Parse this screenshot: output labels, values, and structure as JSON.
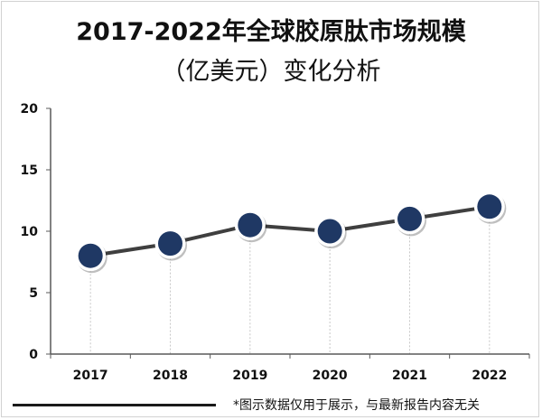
{
  "header": {
    "title_line1": "2017-2022年全球胶原肽市场规模",
    "title_line2": "（亿美元）变化分析"
  },
  "footer": {
    "note": "*图示数据仅用于展示，与最新报告内容无关"
  },
  "colors": {
    "marker_fill": "#1f3864",
    "marker_ring": "#ffffff",
    "line": "#3f3f3f",
    "axis": "#595959",
    "drop_line": "#c8c8c8"
  },
  "chart_data": {
    "type": "line",
    "title": "2017-2022年全球胶原肽市场规模（亿美元）变化分析",
    "xlabel": "",
    "ylabel": "",
    "categories": [
      "2017",
      "2018",
      "2019",
      "2020",
      "2021",
      "2022"
    ],
    "values": [
      8,
      9,
      10.5,
      10,
      11,
      12
    ],
    "ylim": [
      0,
      20
    ],
    "yticks": [
      "0",
      "5",
      "10",
      "15",
      "20"
    ],
    "grid": false,
    "legend": "none"
  }
}
